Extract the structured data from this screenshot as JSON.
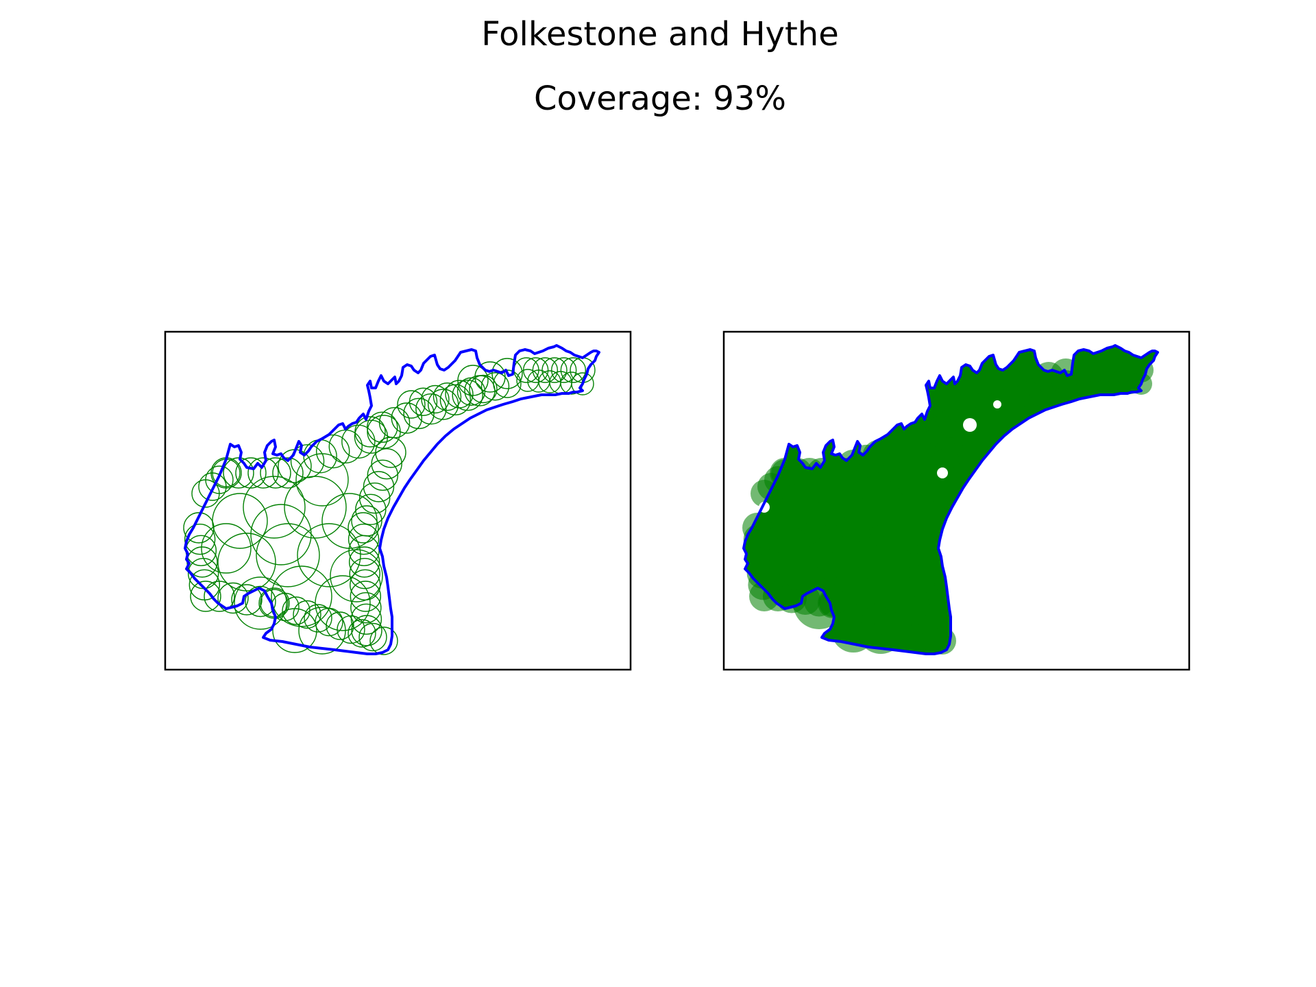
{
  "title": "Folkestone and Hythe",
  "subtitle": "Coverage: 93%",
  "colors": {
    "boundary": "#0000ff",
    "circle": "#008000",
    "fill": "#008000",
    "frame": "#000000",
    "background": "#ffffff"
  },
  "panels": [
    {
      "name": "circles-outline",
      "style": "outline"
    },
    {
      "name": "circles-filled",
      "style": "filled"
    }
  ]
}
